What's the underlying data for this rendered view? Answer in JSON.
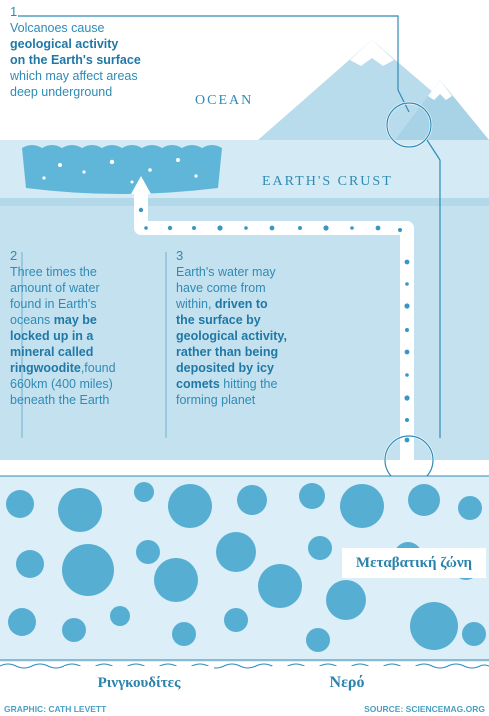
{
  "step1": {
    "number": "1",
    "line1": "Volcanoes cause",
    "line2": "geological activity",
    "line3": "on the Earth's surface",
    "line4": "which may affect areas",
    "line5": "deep underground"
  },
  "ocean_label": "OCEAN",
  "crust_label": "EARTH'S CRUST",
  "step2": {
    "number": "2",
    "l1": "Three times the",
    "l2": "amount of water",
    "l3": "found in Earth's",
    "l4a": "oceans ",
    "l4b": "may be",
    "l5": "locked up in a",
    "l6": "mineral called",
    "l7a": "ringwoodite",
    "l7b": ",found",
    "l8": "660km (400 miles)",
    "l9": "beneath the Earth"
  },
  "step3": {
    "number": "3",
    "l1": "Earth's water may",
    "l2": "have come from",
    "l3a": "within, ",
    "l3b": "driven to",
    "l4": "the surface by",
    "l5": "geological activity,",
    "l6": "rather than being",
    "l7": "deposited by icy",
    "l8a": "comets",
    "l8b": " hitting the",
    "l9": "forming planet"
  },
  "transition_zone_label": "Μεταβατική ζώνη",
  "ringwoodite_label": "Ρινγκουδίτες",
  "water_label": "Νερό",
  "credit_graphic": "GRAPHIC: CATH LEVETT",
  "credit_source": "SOURCE: SCIENCEMAG.ORG",
  "colors": {
    "primary": "#2f8bb6",
    "light": "#c9e4f1",
    "lighter": "#dceef7",
    "bubble": "#56aed2",
    "ocean": "#5fb6d8"
  }
}
